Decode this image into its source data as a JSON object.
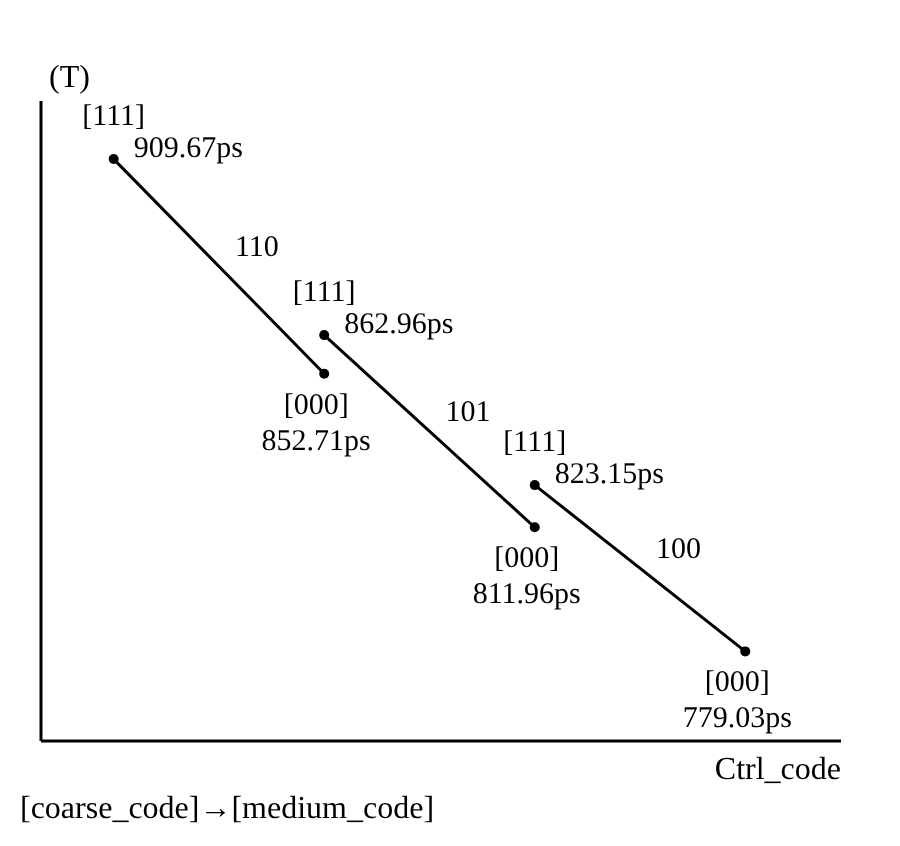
{
  "chart_data": {
    "type": "line",
    "xlabel": "Ctrl_code",
    "ylabel": "(T)",
    "categories": [
      null,
      null,
      null,
      null
    ],
    "series": [
      {
        "name": "110",
        "color": "#000000",
        "values": [
          909.67,
          852.71,
          null,
          null
        ],
        "value_labels": [
          "909.67ps",
          "852.71ps",
          null,
          null
        ]
      },
      {
        "name": "101",
        "color": "#000000",
        "values": [
          null,
          862.96,
          811.96,
          null
        ],
        "value_labels": [
          null,
          "862.96ps",
          "811.96ps",
          null
        ]
      },
      {
        "name": "100",
        "color": "#000000",
        "values": [
          null,
          null,
          823.15,
          779.03
        ],
        "value_labels": [
          null,
          null,
          "823.15ps",
          "779.03ps"
        ]
      }
    ],
    "marker": "circle",
    "legend": false,
    "annotations": [
      {
        "text": "[111]",
        "y": 909.67
      },
      {
        "text": "[000]",
        "y": 852.71
      },
      {
        "text": "[111]",
        "y": 862.96
      },
      {
        "text": "[000]",
        "y": 811.96
      },
      {
        "text": "[111]",
        "y": 823.15
      },
      {
        "text": "[000]",
        "y": 779.03
      },
      "[coarse_code]→[medium_code]"
    ]
  }
}
